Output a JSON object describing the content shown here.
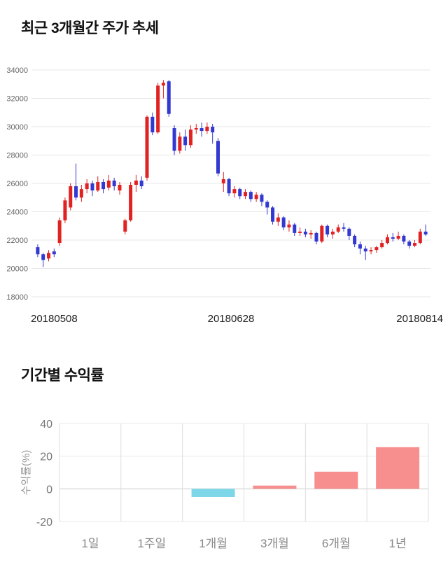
{
  "sections": {
    "price_trend": {
      "title": "최근 3개월간 주가 추세"
    },
    "returns": {
      "title": "기간별 수익률"
    }
  },
  "chart_data": [
    {
      "type": "candlestick",
      "title": "최근 3개월간 주가 추세",
      "ylim": [
        18000,
        34000
      ],
      "yticks": [
        18000,
        20000,
        22000,
        24000,
        26000,
        28000,
        30000,
        32000,
        34000
      ],
      "xtick_labels": [
        "20180508",
        "20180628",
        "20180814"
      ],
      "up_color": "#e12222",
      "down_color": "#3338d0",
      "grid": true,
      "legend": "none",
      "ohlc_format": [
        "open",
        "high",
        "low",
        "close"
      ],
      "ohlc": [
        [
          21500,
          21700,
          20800,
          21000
        ],
        [
          21000,
          21100,
          20100,
          20600
        ],
        [
          20700,
          21300,
          20500,
          21100
        ],
        [
          21200,
          21400,
          20800,
          21000
        ],
        [
          21800,
          23600,
          21600,
          23400
        ],
        [
          23400,
          25000,
          23200,
          24800
        ],
        [
          24300,
          26000,
          24100,
          25800
        ],
        [
          25800,
          27400,
          24800,
          25000
        ],
        [
          25000,
          25900,
          24700,
          25600
        ],
        [
          25600,
          26300,
          25300,
          26000
        ],
        [
          26000,
          26200,
          25100,
          25500
        ],
        [
          25500,
          26500,
          25400,
          26100
        ],
        [
          26100,
          26300,
          25300,
          25600
        ],
        [
          25700,
          26600,
          25500,
          26200
        ],
        [
          26200,
          26400,
          25500,
          25800
        ],
        [
          25500,
          26100,
          25200,
          25900
        ],
        [
          22600,
          23500,
          22400,
          23400
        ],
        [
          23400,
          26100,
          23300,
          25900
        ],
        [
          25900,
          26600,
          25400,
          26200
        ],
        [
          26200,
          26500,
          25600,
          25800
        ],
        [
          26400,
          30800,
          26200,
          30700
        ],
        [
          30700,
          31000,
          29400,
          29600
        ],
        [
          29600,
          33100,
          29500,
          32900
        ],
        [
          32900,
          33300,
          32000,
          33100
        ],
        [
          33200,
          33300,
          30700,
          30900
        ],
        [
          29900,
          30100,
          28000,
          28300
        ],
        [
          28300,
          29600,
          28100,
          29300
        ],
        [
          29300,
          29800,
          28300,
          28700
        ],
        [
          28700,
          30100,
          28500,
          29800
        ],
        [
          29800,
          30200,
          29500,
          29900
        ],
        [
          29900,
          30300,
          29300,
          29700
        ],
        [
          29700,
          30300,
          29500,
          30000
        ],
        [
          30000,
          30200,
          28800,
          29600
        ],
        [
          29000,
          29200,
          26500,
          26700
        ],
        [
          26000,
          26800,
          25400,
          26300
        ],
        [
          26300,
          26400,
          25100,
          25300
        ],
        [
          25300,
          25800,
          25000,
          25600
        ],
        [
          25600,
          25700,
          24900,
          25100
        ],
        [
          25100,
          25600,
          24900,
          25400
        ],
        [
          25400,
          25500,
          24700,
          24900
        ],
        [
          24900,
          25400,
          24700,
          25200
        ],
        [
          25200,
          25300,
          24400,
          24700
        ],
        [
          24700,
          24800,
          23800,
          24300
        ],
        [
          24300,
          24400,
          23100,
          23300
        ],
        [
          23300,
          23900,
          23000,
          23600
        ],
        [
          23600,
          23700,
          22700,
          22900
        ],
        [
          22900,
          23400,
          22600,
          23100
        ],
        [
          23100,
          23200,
          22300,
          22500
        ],
        [
          22500,
          22900,
          22300,
          22600
        ],
        [
          22600,
          22800,
          22200,
          22400
        ],
        [
          22400,
          22700,
          22100,
          22500
        ],
        [
          22500,
          22600,
          21700,
          21900
        ],
        [
          21900,
          23100,
          21800,
          23000
        ],
        [
          23000,
          23100,
          22200,
          22400
        ],
        [
          22400,
          22800,
          22100,
          22600
        ],
        [
          22600,
          23100,
          22500,
          22900
        ],
        [
          22900,
          23200,
          22600,
          22800
        ],
        [
          22800,
          22900,
          22000,
          22300
        ],
        [
          22300,
          22400,
          21500,
          21700
        ],
        [
          21700,
          21900,
          21000,
          21400
        ],
        [
          21400,
          21600,
          20600,
          21200
        ],
        [
          21200,
          21500,
          21000,
          21300
        ],
        [
          21300,
          21600,
          21100,
          21500
        ],
        [
          21500,
          22000,
          21400,
          21800
        ],
        [
          21800,
          22400,
          21700,
          22200
        ],
        [
          22200,
          22500,
          21900,
          22100
        ],
        [
          22100,
          22600,
          22000,
          22300
        ],
        [
          22300,
          22400,
          21700,
          21900
        ],
        [
          21900,
          22000,
          21400,
          21600
        ],
        [
          21600,
          22000,
          21500,
          21800
        ],
        [
          21800,
          22800,
          21700,
          22600
        ],
        [
          22600,
          23100,
          22300,
          22400
        ]
      ]
    },
    {
      "type": "bar",
      "title": "기간별 수익률",
      "ylabel": "수익률(%)",
      "ylim": [
        -20,
        40
      ],
      "yticks": [
        -20,
        0,
        20,
        40
      ],
      "categories": [
        "1일",
        "1주일",
        "1개월",
        "3개월",
        "6개월",
        "1년"
      ],
      "values": [
        0,
        0,
        -5,
        2,
        10.5,
        25.5
      ],
      "positive_color": "#f78f8f",
      "negative_color": "#7ed7e8",
      "grid": true,
      "legend": "none"
    }
  ]
}
